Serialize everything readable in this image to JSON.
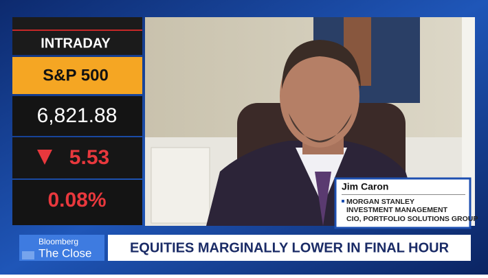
{
  "ticker": {
    "label": "INTRADAY",
    "index": "S&P 500",
    "value": "6,821.88",
    "change": "5.53",
    "percent": "0.08%"
  },
  "guest": {
    "name": "Jim Caron",
    "company_line1": "MORGAN STANLEY",
    "company_line2": "INVESTMENT MANAGEMENT",
    "title": "CIO, PORTFOLIO SOLUTIONS GROUP"
  },
  "show": {
    "brand": "Bloomberg",
    "name": "The Close"
  },
  "headline": "EQUITIES MARGINALLY LOWER IN FINAL HOUR"
}
